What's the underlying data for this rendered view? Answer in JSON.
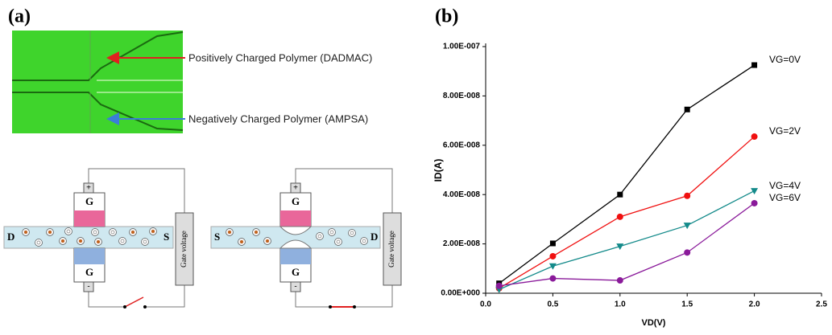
{
  "panel_a": {
    "label": "(a)",
    "annotations": [
      "Positively Charged Polymer (DADMAC)",
      "Negatively Charged Polymer (AMPSA)"
    ],
    "diagrams": [
      {
        "left": "D",
        "right": "S",
        "gate_top": "G",
        "gate_bottom": "G",
        "plus": "+",
        "minus": "-",
        "source": "Gate voltage"
      },
      {
        "left": "S",
        "right": "D",
        "gate_top": "G",
        "gate_bottom": "G",
        "plus": "+",
        "minus": "-",
        "source": "Gate voltage"
      }
    ]
  },
  "panel_b": {
    "label": "(b)"
  },
  "chart_data": {
    "type": "line",
    "x_label": "VD(V)",
    "y_label": "ID(A)",
    "x": [
      0.1,
      0.5,
      1.0,
      1.5,
      2.0
    ],
    "series": [
      {
        "name": "VG=0V",
        "color": "#000000",
        "marker": "square",
        "values": [
          4e-09,
          2.02e-08,
          4e-08,
          7.45e-08,
          9.25e-08
        ]
      },
      {
        "name": "VG=2V",
        "color": "#f01010",
        "marker": "circle",
        "values": [
          2e-09,
          1.5e-08,
          3.1e-08,
          3.95e-08,
          6.35e-08
        ]
      },
      {
        "name": "VG=4V",
        "color": "#138a8a",
        "marker": "triangle-down",
        "values": [
          1.5e-09,
          1.1e-08,
          1.9e-08,
          2.75e-08,
          4.15e-08
        ]
      },
      {
        "name": "VG=6V",
        "color": "#8a1a9a",
        "marker": "circle",
        "values": [
          3e-09,
          6e-09,
          5.2e-09,
          1.65e-08,
          3.65e-08
        ]
      }
    ],
    "xlim": [
      0,
      2.5
    ],
    "xticks": [
      {
        "value": 0,
        "label": "0.0"
      },
      0.5,
      {
        "value": 1,
        "label": "1.0"
      },
      1.5,
      {
        "value": 2,
        "label": "2.0"
      },
      2.5
    ],
    "ylim": [
      0,
      1e-07
    ],
    "yticks": [
      {
        "value": 0,
        "label": "0.00E+000"
      },
      {
        "value": 2e-08,
        "label": "2.00E-008"
      },
      {
        "value": 4e-08,
        "label": "4.00E-008"
      },
      {
        "value": 6e-08,
        "label": "6.00E-008"
      },
      {
        "value": 8e-08,
        "label": "8.00E-008"
      },
      {
        "value": 1e-07,
        "label": "1.00E-007"
      }
    ]
  }
}
